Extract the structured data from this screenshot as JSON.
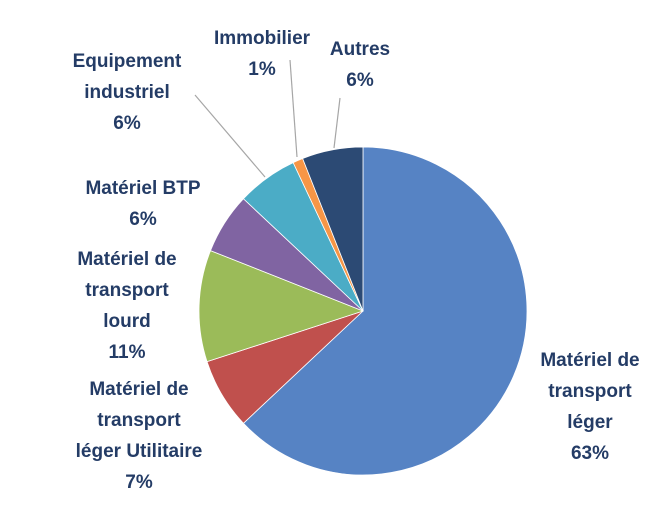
{
  "chart_data": {
    "type": "pie",
    "title": "",
    "start": "top",
    "direction": "clockwise",
    "slices": [
      {
        "label": [
          "Matériel de",
          "transport",
          "léger"
        ],
        "value": 63,
        "value_label": "63%",
        "color": "#5683c4"
      },
      {
        "label": [
          "Matériel de",
          "transport",
          "léger Utilitaire"
        ],
        "value": 7,
        "value_label": "7%",
        "color": "#c0504d"
      },
      {
        "label": [
          "Matériel de",
          "transport",
          "lourd"
        ],
        "value": 11,
        "value_label": "11%",
        "color": "#9bbb59"
      },
      {
        "label": [
          "Matériel BTP"
        ],
        "value": 6,
        "value_label": "6%",
        "color": "#8064a2"
      },
      {
        "label": [
          "Equipement",
          "industriel"
        ],
        "value": 6,
        "value_label": "6%",
        "color": "#4bacc6"
      },
      {
        "label": [
          "Immobilier"
        ],
        "value": 1,
        "value_label": "1%",
        "color": "#f79646"
      },
      {
        "label": [
          "Autres"
        ],
        "value": 6,
        "value_label": "6%",
        "color": "#2c4a74"
      }
    ]
  }
}
